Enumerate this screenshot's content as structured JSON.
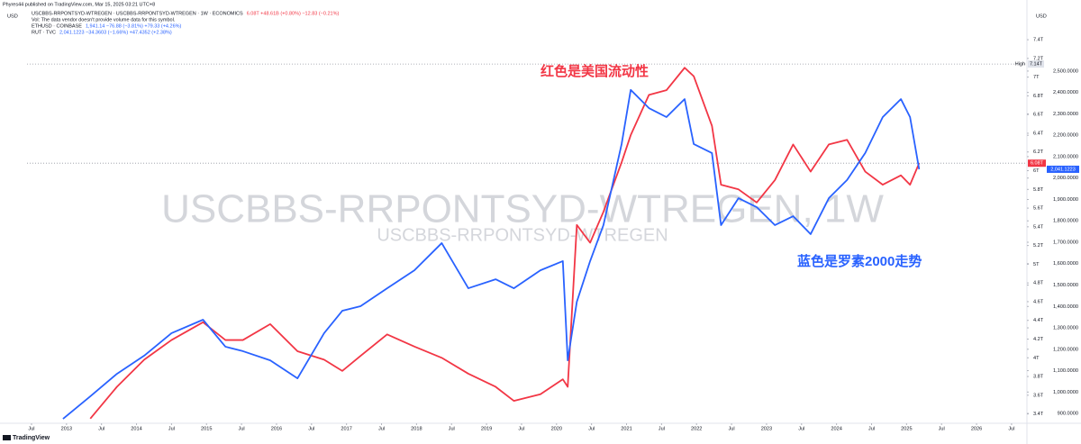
{
  "chart_data": {
    "type": "line",
    "byline": "Phyres44 published on TradingView.com, Mar 15, 2025 03:21 UTC+8",
    "volume_note": "Vol: The data vendor doesn't provide volume data for this symbol.",
    "currency_left": "USD",
    "currency_right": "USD",
    "watermark": "USCBBS-RRPONTSYD-WTREGEN, 1W",
    "watermark_sub": "USCBBS-RRPONTSYD-WTREGEN",
    "brand": "TradingView",
    "other_symbols": [
      {
        "name": "ETHUSD · COINBASE",
        "quote": "1,941.14  −76.88 (−3.81%)  +79.33 (+4.26%)",
        "color": "#2962ff"
      }
    ],
    "annotations": [
      {
        "text": "红色是美国流动性",
        "color": "#f23645"
      },
      {
        "text": "蓝色是罗素2000走势",
        "color": "#2962ff"
      }
    ],
    "x": [
      2012.95,
      2013.34,
      2013.72,
      2014.11,
      2014.5,
      2014.95,
      2015.27,
      2015.52,
      2015.91,
      2016.3,
      2016.68,
      2016.94,
      2017.2,
      2017.58,
      2017.97,
      2018.36,
      2018.74,
      2019.13,
      2019.39,
      2019.77,
      2020.09,
      2020.16,
      2020.29,
      2020.48,
      2020.67,
      2020.93,
      2021.06,
      2021.32,
      2021.57,
      2021.83,
      2021.96,
      2022.22,
      2022.35,
      2022.6,
      2022.86,
      2023.12,
      2023.38,
      2023.63,
      2023.89,
      2024.15,
      2024.41,
      2024.66,
      2024.92,
      2025.05,
      2025.18
    ],
    "series": [
      {
        "name": "USCBBS-RRPONTSYD-WTREGEN · USCBBS-RRPONTSYD-WTREGEN · 1W · ECONOMICS",
        "quote": "6.08T  +48.61B (+0.80%)  −12.83 (−0.21%)",
        "color": "#f23645",
        "axis": "y",
        "values": [
          null,
          3.35,
          3.69,
          3.98,
          4.19,
          4.38,
          4.19,
          4.19,
          4.36,
          4.07,
          3.98,
          3.86,
          4.02,
          4.25,
          4.12,
          4.0,
          3.83,
          3.69,
          3.54,
          3.61,
          3.77,
          3.69,
          5.42,
          5.23,
          5.56,
          6.09,
          6.38,
          6.81,
          6.86,
          7.1,
          7.01,
          6.48,
          5.85,
          5.8,
          5.66,
          5.9,
          6.28,
          5.99,
          6.28,
          6.33,
          5.99,
          5.85,
          5.95,
          5.85,
          6.08
        ]
      },
      {
        "name": "RUT · TVC",
        "quote": "2,041.1223  −34.3603 (−1.66%)  +47.4352 (+2.38%)",
        "color": "#2962ff",
        "axis": "y2",
        "values": [
          875,
          980,
          1085,
          1170,
          1275,
          1338,
          1212,
          1191,
          1148,
          1064,
          1275,
          1380,
          1401,
          1485,
          1569,
          1696,
          1485,
          1527,
          1485,
          1569,
          1612,
          1148,
          1422,
          1612,
          1780,
          2159,
          2412,
          2327,
          2285,
          2369,
          2159,
          2117,
          1780,
          1906,
          1864,
          1780,
          1822,
          1738,
          1906,
          1991,
          2117,
          2285,
          2369,
          2285,
          2041.1223
        ]
      }
    ],
    "price_tags": [
      {
        "value": 6.08,
        "label": "6.08T",
        "axis": "y",
        "color": "#f23645"
      },
      {
        "value": 2041.1223,
        "label": "2,041.1223",
        "axis": "y2",
        "color": "#2962ff"
      }
    ],
    "high": {
      "text": "High",
      "value": 7.14,
      "label": "7.14T"
    },
    "xlim": [
      2012.05,
      2026.72
    ],
    "xticks": [
      {
        "value": 2012.5,
        "label": "Jul"
      },
      2013,
      {
        "value": 2013.5,
        "label": "Jul"
      },
      2014,
      {
        "value": 2014.5,
        "label": "Jul"
      },
      2015,
      {
        "value": 2015.5,
        "label": "Jul"
      },
      2016,
      {
        "value": 2016.5,
        "label": "Jul"
      },
      2017,
      {
        "value": 2017.5,
        "label": "Jul"
      },
      2018,
      {
        "value": 2018.5,
        "label": "Jul"
      },
      2019,
      {
        "value": 2019.5,
        "label": "Jul"
      },
      2020,
      {
        "value": 2020.5,
        "label": "Jul"
      },
      2021,
      {
        "value": 2021.5,
        "label": "Jul"
      },
      2022,
      {
        "value": 2022.5,
        "label": "Jul"
      },
      2023,
      {
        "value": 2023.5,
        "label": "Jul"
      },
      2024,
      {
        "value": 2024.5,
        "label": "Jul"
      },
      2025,
      {
        "value": 2025.5,
        "label": "Jul"
      },
      2026,
      {
        "value": 2026.5,
        "label": "Jul"
      }
    ],
    "ylim": [
      3.3,
      7.68
    ],
    "yticks": [
      {
        "value": 3.4,
        "label": "3.4T"
      },
      {
        "value": 3.6,
        "label": "3.6T"
      },
      {
        "value": 3.8,
        "label": "3.8T"
      },
      {
        "value": 4,
        "label": "4T"
      },
      {
        "value": 4.2,
        "label": "4.2T"
      },
      {
        "value": 4.4,
        "label": "4.4T"
      },
      {
        "value": 4.6,
        "label": "4.6T"
      },
      {
        "value": 4.8,
        "label": "4.8T"
      },
      {
        "value": 5,
        "label": "5T"
      },
      {
        "value": 5.2,
        "label": "5.2T"
      },
      {
        "value": 5.4,
        "label": "5.4T"
      },
      {
        "value": 5.6,
        "label": "5.6T"
      },
      {
        "value": 5.8,
        "label": "5.8T"
      },
      {
        "value": 6,
        "label": "6T"
      },
      {
        "value": 6.2,
        "label": "6.2T"
      },
      {
        "value": 6.4,
        "label": "6.4T"
      },
      {
        "value": 6.6,
        "label": "6.6T"
      },
      {
        "value": 6.8,
        "label": "6.8T"
      },
      {
        "value": 7,
        "label": "7T"
      },
      {
        "value": 7.2,
        "label": "7.2T"
      },
      {
        "value": 7.4,
        "label": "7.4T"
      }
    ],
    "y2lim": [
      854,
      2769
    ],
    "y2ticks": [
      {
        "value": 900,
        "label": "900.0000"
      },
      {
        "value": 1000,
        "label": "1,000.0000"
      },
      {
        "value": 1100,
        "label": "1,100.0000"
      },
      {
        "value": 1200,
        "label": "1,200.0000"
      },
      {
        "value": 1300,
        "label": "1,300.0000"
      },
      {
        "value": 1400,
        "label": "1,400.0000"
      },
      {
        "value": 1500,
        "label": "1,500.0000"
      },
      {
        "value": 1600,
        "label": "1,600.0000"
      },
      {
        "value": 1700,
        "label": "1,700.0000"
      },
      {
        "value": 1800,
        "label": "1,800.0000"
      },
      {
        "value": 1900,
        "label": "1,900.0000"
      },
      {
        "value": 2000,
        "label": "2,000.0000"
      },
      {
        "value": 2100,
        "label": "2,100.0000"
      },
      {
        "value": 2200,
        "label": "2,200.0000"
      },
      {
        "value": 2300,
        "label": "2,300.0000"
      },
      {
        "value": 2400,
        "label": "2,400.0000"
      },
      {
        "value": 2500,
        "label": "2,500.0000"
      }
    ],
    "grid": false
  }
}
